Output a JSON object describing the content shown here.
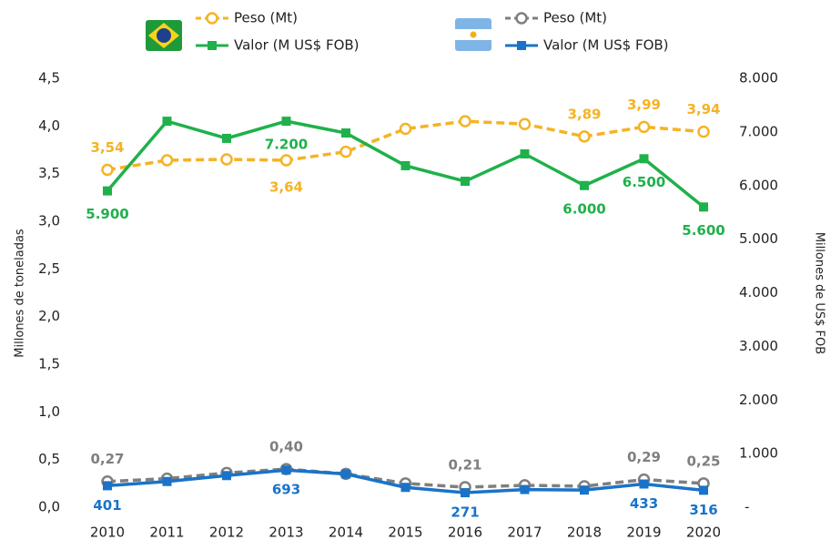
{
  "chart_data": {
    "type": "line",
    "categories": [
      "2010",
      "2011",
      "2012",
      "2013",
      "2014",
      "2015",
      "2016",
      "2017",
      "2018",
      "2019",
      "2020"
    ],
    "ylabel": "Millones de toneladas",
    "y2label": "Millones de US$ FOB",
    "ylim": [
      0,
      4.5
    ],
    "yticks": [
      {
        "value": 0,
        "label": "0,0"
      },
      {
        "value": 0.5,
        "label": "0,5"
      },
      {
        "value": 1,
        "label": "1,0"
      },
      {
        "value": 1.5,
        "label": "1,5"
      },
      {
        "value": 2,
        "label": "2,0"
      },
      {
        "value": 2.5,
        "label": "2,5"
      },
      {
        "value": 3,
        "label": "3,0"
      },
      {
        "value": 3.5,
        "label": "3,5"
      },
      {
        "value": 4,
        "label": "4,0"
      },
      {
        "value": 4.5,
        "label": "4,5"
      }
    ],
    "y2lim": [
      0,
      8000
    ],
    "y2ticks": [
      {
        "value": 0,
        "label": "-"
      },
      {
        "value": 1000,
        "label": "1.000"
      },
      {
        "value": 2000,
        "label": "2.000"
      },
      {
        "value": 3000,
        "label": "3.000"
      },
      {
        "value": 4000,
        "label": "4.000"
      },
      {
        "value": 5000,
        "label": "5.000"
      },
      {
        "value": 6000,
        "label": "6.000"
      },
      {
        "value": 7000,
        "label": "7.000"
      },
      {
        "value": 8000,
        "label": "8.000"
      }
    ],
    "series": [
      {
        "name": "Peso (Mt)",
        "color": "#f5b324",
        "dashed": true,
        "marker": "circle",
        "values": [
          3.54,
          3.64,
          3.65,
          3.64,
          3.73,
          3.97,
          4.05,
          4.02,
          3.89,
          3.99,
          3.94
        ],
        "value_labels": [
          "3,54",
          null,
          null,
          "3,64",
          null,
          null,
          null,
          null,
          "3,89",
          "3,99",
          "3,94"
        ]
      },
      {
        "name": "Valor (M US$ FOB)",
        "color": "#1fb14a",
        "dashed": false,
        "marker": "square",
        "axis": "y2",
        "values": [
          5900,
          7200,
          6880,
          7200,
          6980,
          6370,
          6080,
          6590,
          6000,
          6500,
          5600
        ],
        "value_labels": [
          "5.900",
          null,
          null,
          "7.200",
          null,
          null,
          null,
          null,
          "6.000",
          "6.500",
          "5.600"
        ]
      },
      {
        "name": "Peso (Mt)",
        "color": "#7f7f7f",
        "dashed": true,
        "marker": "circle",
        "values": [
          0.27,
          0.3,
          0.36,
          0.4,
          0.35,
          0.25,
          0.21,
          0.23,
          0.22,
          0.29,
          0.25
        ],
        "value_labels": [
          "0,27",
          null,
          null,
          "0,40",
          null,
          null,
          "0,21",
          null,
          null,
          "0,29",
          "0,25"
        ]
      },
      {
        "name": "Valor (M US$ FOB)",
        "color": "#1a73c8",
        "dashed": false,
        "marker": "square",
        "axis": "y2",
        "values": [
          401,
          480,
          590,
          693,
          620,
          370,
          271,
          330,
          320,
          433,
          316
        ],
        "value_labels": [
          "401",
          null,
          null,
          "693",
          null,
          null,
          "271",
          null,
          null,
          "433",
          "316"
        ]
      }
    ]
  }
}
